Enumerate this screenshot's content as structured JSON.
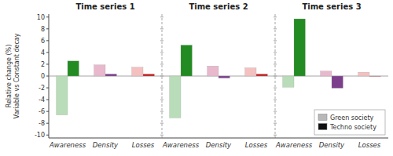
{
  "chart_data": [
    {
      "type": "bar",
      "title": "Time series 1",
      "ylabel": "Relative change (%)\nVariable vs Constant decay",
      "categories": [
        "Awareness",
        "Density",
        "Losses"
      ],
      "ylim": [
        -10.5,
        10.5
      ],
      "yticks": [
        -10,
        -8,
        -6,
        -4,
        -2,
        0,
        2,
        4,
        6,
        8,
        10
      ],
      "series": [
        {
          "name": "Green society",
          "color": "#b8b8b8",
          "colors": [
            "#b8ddb8",
            "#e8b8cc",
            "#f4c0c0"
          ],
          "values": [
            -6.6,
            1.9,
            1.5
          ]
        },
        {
          "name": "Techno society",
          "color": "#101010",
          "colors": [
            "#228B22",
            "#7b3f8c",
            "#c82020"
          ],
          "values": [
            2.55,
            0.35,
            0.35
          ]
        }
      ]
    },
    {
      "type": "bar",
      "title": "Time series 2",
      "categories": [
        "Awareness",
        "Density",
        "Losses"
      ],
      "ylim": [
        -10.5,
        10.5
      ],
      "yticks": [
        -10,
        -8,
        -6,
        -4,
        -2,
        0,
        2,
        4,
        6,
        8,
        10
      ],
      "tick_labels": "x",
      "series": [
        {
          "name": "Green society",
          "color": "#b8b8b8",
          "colors": [
            "#b8ddb8",
            "#e8b8cc",
            "#f4c0c0"
          ],
          "values": [
            -7.1,
            1.7,
            1.4
          ]
        },
        {
          "name": "Techno society",
          "color": "#101010",
          "colors": [
            "#228B22",
            "#7b3f8c",
            "#c82020"
          ],
          "values": [
            5.25,
            -0.35,
            0.35
          ]
        }
      ]
    },
    {
      "type": "bar",
      "title": "Time series 3",
      "categories": [
        "Awareness",
        "Density",
        "Losses"
      ],
      "ylim": [
        -10.5,
        10.5
      ],
      "yticks": [
        -10,
        -8,
        -6,
        -4,
        -2,
        0,
        2,
        4,
        6,
        8,
        10
      ],
      "tick_labels": "x",
      "legend": "lower right",
      "series": [
        {
          "name": "Green society",
          "color": "#b8b8b8",
          "colors": [
            "#b8ddb8",
            "#e8b8cc",
            "#f4c0c0"
          ],
          "values": [
            -1.9,
            0.85,
            0.65
          ]
        },
        {
          "name": "Techno society",
          "color": "#101010",
          "colors": [
            "#228B22",
            "#7b3f8c",
            "#c82020"
          ],
          "values": [
            9.7,
            -2.05,
            -0.05
          ]
        }
      ]
    }
  ]
}
